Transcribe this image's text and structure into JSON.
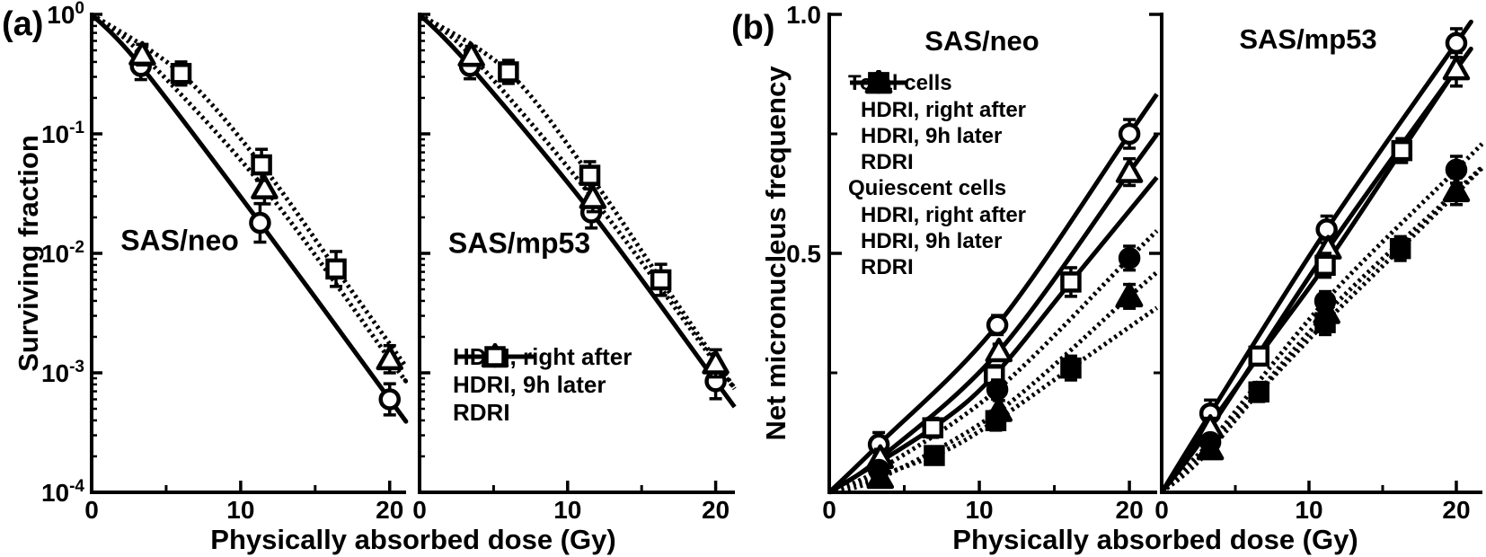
{
  "figure": {
    "background": "#ffffff",
    "ink_color": "#000000",
    "panel_a_label": "(a)",
    "panel_b_label": "(b)",
    "panel_a": {
      "ylabel": "Surviving fraction",
      "xlabel": "Physically absorbed dose (Gy)",
      "y_tick_exponents": [
        0,
        -1,
        -2,
        -3,
        -4
      ],
      "x_tick_labels": [
        "0",
        "10",
        "20"
      ]
    },
    "panel_b": {
      "ylabel": "Net micronucleus frequency",
      "xlabel": "Physically absorbed dose (Gy)",
      "y_tick_labels": [
        "1.0",
        "0.5"
      ],
      "x_tick_labels": [
        "0",
        "10",
        "20"
      ]
    },
    "legend_a": {
      "items": [
        {
          "label": "HDRI, right after",
          "marker": "circle-open-icon",
          "line": "solid"
        },
        {
          "label": "HDRI, 9h later",
          "marker": "triangle-open-icon",
          "line": "dotted"
        },
        {
          "label": "RDRI",
          "marker": "square-open-icon",
          "line": "dotted"
        }
      ]
    },
    "legend_b": {
      "groups": [
        {
          "header": "Total cells",
          "items": [
            {
              "label": "HDRI, right after",
              "marker": "circle-open-icon",
              "line": "solid"
            },
            {
              "label": "HDRI, 9h later",
              "marker": "triangle-open-icon",
              "line": "solid"
            },
            {
              "label": "RDRI",
              "marker": "square-open-icon",
              "line": "solid"
            }
          ]
        },
        {
          "header": "Quiescent cells",
          "items": [
            {
              "label": "HDRI, right after",
              "marker": "circle-filled-icon",
              "line": "dotted"
            },
            {
              "label": "HDRI, 9h later",
              "marker": "triangle-filled-icon",
              "line": "dotted"
            },
            {
              "label": "RDRI",
              "marker": "square-filled-icon",
              "line": "dotted"
            }
          ]
        }
      ]
    }
  },
  "chart_data": [
    {
      "id": "a_neo",
      "type": "line",
      "panel": "a",
      "title": "SAS/neo",
      "xlabel": "Physically absorbed dose (Gy)",
      "ylabel": "Surviving fraction",
      "y_scale": "log",
      "ylim": [
        0.0001,
        1
      ],
      "xlim": [
        0,
        21
      ],
      "x_ticks": [
        0,
        10,
        20
      ],
      "x_minor_ticks": [
        5,
        15
      ],
      "y_tick_exponents": [
        0,
        -1,
        -2,
        -3,
        -4
      ],
      "grid": false,
      "series": [
        {
          "name": "HDRI, right after",
          "group": "",
          "marker": "circle",
          "fill": "open",
          "line": "solid",
          "points": [
            {
              "x": 3.3,
              "y": 0.37,
              "err_factor": 1.3
            },
            {
              "x": 11.3,
              "y": 0.018,
              "err_factor": 1.45
            },
            {
              "x": 20,
              "y": 0.0006,
              "err_factor": 1.35
            }
          ]
        },
        {
          "name": "HDRI, 9h later",
          "group": "",
          "marker": "triangle",
          "fill": "open",
          "line": "dotted",
          "points": [
            {
              "x": 3.4,
              "y": 0.46,
              "err_factor": 1.22
            },
            {
              "x": 11.6,
              "y": 0.035,
              "err_factor": 1.35
            },
            {
              "x": 20,
              "y": 0.0013,
              "err_factor": 1.3
            }
          ]
        },
        {
          "name": "RDRI",
          "group": "",
          "marker": "square",
          "fill": "open",
          "line": "dotted",
          "points": [
            {
              "x": 6.0,
              "y": 0.32,
              "err_factor": 1.25
            },
            {
              "x": 11.4,
              "y": 0.055,
              "err_factor": 1.35
            },
            {
              "x": 16.4,
              "y": 0.0074,
              "err_factor": 1.4
            }
          ]
        }
      ]
    },
    {
      "id": "a_mp53",
      "type": "line",
      "panel": "a",
      "title": "SAS/mp53",
      "xlabel": "Physically absorbed dose (Gy)",
      "ylabel": "Surviving fraction",
      "y_scale": "log",
      "ylim": [
        0.0001,
        1
      ],
      "xlim": [
        0,
        21
      ],
      "x_ticks": [
        0,
        10,
        20
      ],
      "x_minor_ticks": [
        5,
        15
      ],
      "y_tick_exponents": [
        0,
        -1,
        -2,
        -3,
        -4
      ],
      "grid": false,
      "series": [
        {
          "name": "HDRI, right after",
          "group": "",
          "marker": "circle",
          "fill": "open",
          "line": "solid",
          "points": [
            {
              "x": 3.4,
              "y": 0.37,
              "err_factor": 1.28
            },
            {
              "x": 11.6,
              "y": 0.022,
              "err_factor": 1.35
            },
            {
              "x": 20,
              "y": 0.00085,
              "err_factor": 1.4
            }
          ]
        },
        {
          "name": "HDRI, 9h later",
          "group": "",
          "marker": "triangle",
          "fill": "open",
          "line": "dotted",
          "points": [
            {
              "x": 3.5,
              "y": 0.45,
              "err_factor": 1.2
            },
            {
              "x": 11.7,
              "y": 0.029,
              "err_factor": 1.3
            },
            {
              "x": 20,
              "y": 0.0012,
              "err_factor": 1.3
            }
          ]
        },
        {
          "name": "RDRI",
          "group": "",
          "marker": "square",
          "fill": "open",
          "line": "dotted",
          "points": [
            {
              "x": 6.0,
              "y": 0.33,
              "err_factor": 1.25
            },
            {
              "x": 11.5,
              "y": 0.045,
              "err_factor": 1.3
            },
            {
              "x": 16.3,
              "y": 0.006,
              "err_factor": 1.35
            }
          ]
        }
      ]
    },
    {
      "id": "b_neo",
      "type": "line",
      "panel": "b",
      "title": "SAS/neo",
      "xlabel": "Physically absorbed dose (Gy)",
      "ylabel": "Net micronucleus frequency",
      "y_scale": "linear",
      "ylim": [
        0,
        1.0
      ],
      "xlim": [
        0,
        21
      ],
      "x_ticks": [
        0,
        10,
        20
      ],
      "x_minor_ticks": [
        5,
        15
      ],
      "y_ticks": [
        {
          "v": 1.0,
          "label": "1.0"
        },
        {
          "v": 0.5,
          "label": "0.5"
        }
      ],
      "y_minor_ticks": [
        0.75,
        0.25
      ],
      "grid": false,
      "series": [
        {
          "name": "HDRI, right after",
          "group": "Total cells",
          "marker": "circle",
          "fill": "open",
          "line": "solid",
          "points": [
            {
              "x": 3.3,
              "y": 0.1,
              "err": 0.025
            },
            {
              "x": 11.2,
              "y": 0.35,
              "err": 0.02
            },
            {
              "x": 20,
              "y": 0.75,
              "err": 0.03
            }
          ]
        },
        {
          "name": "HDRI, 9h later",
          "group": "Total cells",
          "marker": "triangle",
          "fill": "open",
          "line": "solid",
          "points": [
            {
              "x": 3.4,
              "y": 0.072,
              "err": 0.018
            },
            {
              "x": 11.3,
              "y": 0.295,
              "err": 0.015
            },
            {
              "x": 20,
              "y": 0.67,
              "err": 0.028
            }
          ]
        },
        {
          "name": "RDRI",
          "group": "Total cells",
          "marker": "square",
          "fill": "open",
          "line": "solid",
          "points": [
            {
              "x": 6.9,
              "y": 0.135,
              "err": 0.02
            },
            {
              "x": 11.0,
              "y": 0.245,
              "err": 0.02
            },
            {
              "x": 16.1,
              "y": 0.44,
              "err": 0.03
            }
          ]
        },
        {
          "name": "HDRI, right after",
          "group": "Quiescent cells",
          "marker": "circle",
          "fill": "solid",
          "line": "dotted",
          "points": [
            {
              "x": 3.3,
              "y": 0.047,
              "err": 0.015
            },
            {
              "x": 11.2,
              "y": 0.215,
              "err": 0.02
            },
            {
              "x": 20,
              "y": 0.49,
              "err": 0.025
            }
          ]
        },
        {
          "name": "HDRI, 9h later",
          "group": "Quiescent cells",
          "marker": "triangle",
          "fill": "solid",
          "line": "dotted",
          "points": [
            {
              "x": 3.4,
              "y": 0.03,
              "err": 0.012
            },
            {
              "x": 11.3,
              "y": 0.17,
              "err": 0.022
            },
            {
              "x": 20,
              "y": 0.41,
              "err": 0.025
            }
          ]
        },
        {
          "name": "RDRI",
          "group": "Quiescent cells",
          "marker": "square",
          "fill": "solid",
          "line": "dotted",
          "points": [
            {
              "x": 7.0,
              "y": 0.077,
              "err": 0.015
            },
            {
              "x": 11.1,
              "y": 0.15,
              "err": 0.02
            },
            {
              "x": 16.1,
              "y": 0.26,
              "err": 0.025
            }
          ]
        }
      ]
    },
    {
      "id": "b_mp53",
      "type": "line",
      "panel": "b",
      "title": "SAS/mp53",
      "xlabel": "Physically absorbed dose (Gy)",
      "ylabel": "Net micronucleus frequency",
      "y_scale": "linear",
      "ylim": [
        0,
        1.0
      ],
      "xlim": [
        0,
        21
      ],
      "x_ticks": [
        0,
        10,
        20
      ],
      "x_minor_ticks": [
        5,
        15
      ],
      "y_ticks": [
        {
          "v": 1.0,
          "label": "1.0"
        },
        {
          "v": 0.5,
          "label": "0.5"
        }
      ],
      "y_minor_ticks": [
        0.75,
        0.25
      ],
      "grid": false,
      "series": [
        {
          "name": "HDRI, right after",
          "group": "Total cells",
          "marker": "circle",
          "fill": "open",
          "line": "solid",
          "ext": 20.9,
          "points": [
            {
              "x": 3.3,
              "y": 0.165,
              "err": 0.028
            },
            {
              "x": 11.2,
              "y": 0.55,
              "err": 0.028
            },
            {
              "x": 20,
              "y": 0.94,
              "err": 0.03
            }
          ]
        },
        {
          "name": "HDRI, 9h later",
          "group": "Total cells",
          "marker": "triangle",
          "fill": "open",
          "line": "solid",
          "ext": 20.9,
          "points": [
            {
              "x": 3.3,
              "y": 0.135,
              "err": 0.02
            },
            {
              "x": 11.3,
              "y": 0.51,
              "err": 0.02
            },
            {
              "x": 20,
              "y": 0.885,
              "err": 0.035
            }
          ]
        },
        {
          "name": "RDRI",
          "group": "Total cells",
          "marker": "square",
          "fill": "open",
          "line": "solid",
          "ext": 20.5,
          "points": [
            {
              "x": 6.6,
              "y": 0.285,
              "err": 0.018
            },
            {
              "x": 11.1,
              "y": 0.475,
              "err": 0.025
            },
            {
              "x": 16.3,
              "y": 0.715,
              "err": 0.025
            }
          ]
        },
        {
          "name": "HDRI, right after",
          "group": "Quiescent cells",
          "marker": "circle",
          "fill": "solid",
          "line": "dotted",
          "points": [
            {
              "x": 3.3,
              "y": 0.105,
              "err": 0.015
            },
            {
              "x": 11.1,
              "y": 0.4,
              "err": 0.02
            },
            {
              "x": 20,
              "y": 0.675,
              "err": 0.028
            }
          ]
        },
        {
          "name": "HDRI, 9h later",
          "group": "Quiescent cells",
          "marker": "triangle",
          "fill": "solid",
          "line": "dotted",
          "points": [
            {
              "x": 3.3,
              "y": 0.09,
              "err": 0.015
            },
            {
              "x": 11.2,
              "y": 0.375,
              "err": 0.02
            },
            {
              "x": 20,
              "y": 0.63,
              "err": 0.028
            }
          ]
        },
        {
          "name": "RDRI",
          "group": "Quiescent cells",
          "marker": "square",
          "fill": "solid",
          "line": "dotted",
          "points": [
            {
              "x": 6.6,
              "y": 0.21,
              "err": 0.02
            },
            {
              "x": 11.1,
              "y": 0.355,
              "err": 0.025
            },
            {
              "x": 16.2,
              "y": 0.51,
              "err": 0.025
            }
          ]
        }
      ]
    }
  ]
}
